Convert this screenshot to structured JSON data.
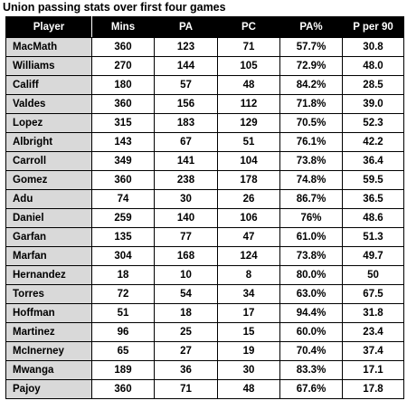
{
  "title": "Union passing stats over first four games",
  "table": {
    "headers": [
      "Player",
      "Mins",
      "PA",
      "PC",
      "PA%",
      "P per 90"
    ],
    "rows": [
      [
        "MacMath",
        "360",
        "123",
        "71",
        "57.7%",
        "30.8"
      ],
      [
        "Williams",
        "270",
        "144",
        "105",
        "72.9%",
        "48.0"
      ],
      [
        "Califf",
        "180",
        "57",
        "48",
        "84.2%",
        "28.5"
      ],
      [
        "Valdes",
        "360",
        "156",
        "112",
        "71.8%",
        "39.0"
      ],
      [
        "Lopez",
        "315",
        "183",
        "129",
        "70.5%",
        "52.3"
      ],
      [
        "Albright",
        "143",
        "67",
        "51",
        "76.1%",
        "42.2"
      ],
      [
        "Carroll",
        "349",
        "141",
        "104",
        "73.8%",
        "36.4"
      ],
      [
        "Gomez",
        "360",
        "238",
        "178",
        "74.8%",
        "59.5"
      ],
      [
        "Adu",
        "74",
        "30",
        "26",
        "86.7%",
        "36.5"
      ],
      [
        "Daniel",
        "259",
        "140",
        "106",
        "76%",
        "48.6"
      ],
      [
        "Garfan",
        "135",
        "77",
        "47",
        "61.0%",
        "51.3"
      ],
      [
        "Marfan",
        "304",
        "168",
        "124",
        "73.8%",
        "49.7"
      ],
      [
        "Hernandez",
        "18",
        "10",
        "8",
        "80.0%",
        "50"
      ],
      [
        "Torres",
        "72",
        "54",
        "34",
        "63.0%",
        "67.5"
      ],
      [
        "Hoffman",
        "51",
        "18",
        "17",
        "94.4%",
        "31.8"
      ],
      [
        "Martinez",
        "96",
        "25",
        "15",
        "60.0%",
        "23.4"
      ],
      [
        "McInerney",
        "65",
        "27",
        "19",
        "70.4%",
        "37.4"
      ],
      [
        "Mwanga",
        "189",
        "36",
        "30",
        "83.3%",
        "17.1"
      ],
      [
        "Pajoy",
        "360",
        "71",
        "48",
        "67.6%",
        "17.8"
      ]
    ]
  }
}
